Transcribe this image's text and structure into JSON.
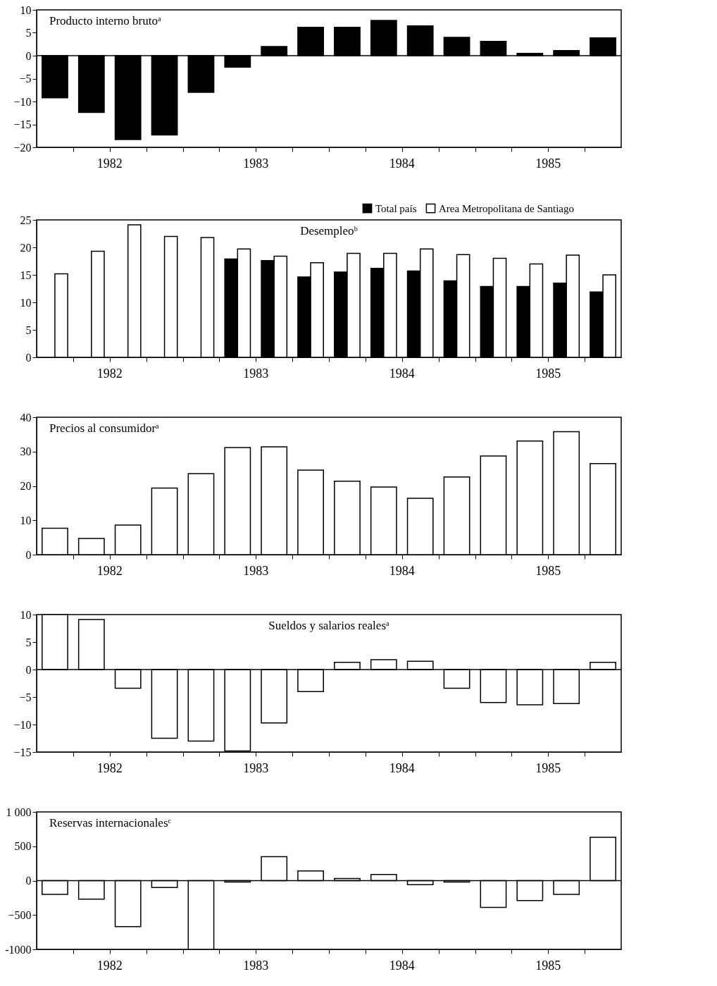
{
  "chart_data": [
    {
      "type": "bar",
      "title": "Producto interno brutoᵃ",
      "categories": [
        null,
        null,
        null,
        null,
        null,
        null,
        null,
        null,
        null,
        null,
        null,
        null,
        null,
        null,
        null,
        null
      ],
      "values": [
        -9.2,
        -12.4,
        -18.3,
        -17.3,
        -8.0,
        -2.5,
        2.0,
        6.2,
        6.2,
        7.7,
        6.5,
        4.0,
        3.1,
        0.5,
        1.1,
        3.9
      ],
      "color": "#000000",
      "ylim": [
        -20,
        10
      ],
      "yticks": [
        -20,
        -15,
        -10,
        -5,
        0,
        5,
        10
      ],
      "ref_lines": [
        {
          "axis": "y",
          "value": 0
        }
      ],
      "tick_labels": "y",
      "grid": false,
      "legend": false,
      "annotations": [
        "1982",
        "1983",
        "1984",
        "1985"
      ]
    },
    {
      "type": "bar",
      "title": "Desempleoᵇ",
      "categories": [
        null,
        null,
        null,
        null,
        null,
        null,
        null,
        null,
        null,
        null,
        null,
        null,
        null,
        null,
        null,
        null
      ],
      "series": [
        {
          "name": "Total país",
          "color": "#000000",
          "values": [
            null,
            null,
            null,
            null,
            null,
            17.9,
            17.6,
            14.6,
            15.5,
            16.2,
            15.7,
            13.9,
            12.9,
            12.9,
            13.5,
            11.9
          ]
        },
        {
          "name": "Area Metropolitana de Santiago",
          "color": "#ffffff",
          "values": [
            15.2,
            19.3,
            24.1,
            22.0,
            21.8,
            19.7,
            18.4,
            17.2,
            18.9,
            18.9,
            19.7,
            18.7,
            18.0,
            17.0,
            18.6,
            15.0
          ]
        }
      ],
      "ylim": [
        0,
        25
      ],
      "yticks": [
        0,
        5,
        10,
        15,
        20,
        25
      ],
      "tick_labels": "y",
      "grid": false,
      "legend": "top right",
      "annotations": [
        "1982",
        "1983",
        "1984",
        "1985"
      ]
    },
    {
      "type": "bar",
      "title": "Precios al consumidorᵃ",
      "categories": [
        null,
        null,
        null,
        null,
        null,
        null,
        null,
        null,
        null,
        null,
        null,
        null,
        null,
        null,
        null,
        null
      ],
      "values": [
        7.7,
        4.7,
        8.6,
        19.4,
        23.6,
        31.2,
        31.4,
        24.6,
        21.4,
        19.7,
        16.4,
        22.6,
        28.7,
        33.1,
        35.8,
        26.5
      ],
      "color": "#ffffff",
      "ylim": [
        0,
        40
      ],
      "yticks": [
        0,
        10,
        20,
        30,
        40
      ],
      "tick_labels": "y",
      "grid": false,
      "legend": false,
      "annotations": [
        "1982",
        "1983",
        "1984",
        "1985"
      ]
    },
    {
      "type": "bar",
      "title": "Sueldos y salarios realesᵃ",
      "categories": [
        null,
        null,
        null,
        null,
        null,
        null,
        null,
        null,
        null,
        null,
        null,
        null,
        null,
        null,
        null,
        null
      ],
      "values": [
        10.0,
        9.1,
        -3.4,
        -12.5,
        -13.0,
        -14.8,
        -9.7,
        -4.0,
        1.3,
        1.8,
        1.5,
        -3.4,
        -6.0,
        -6.4,
        -6.2,
        1.3
      ],
      "color": "#ffffff",
      "ylim": [
        -15,
        10
      ],
      "yticks": [
        -15,
        -10,
        -5,
        0,
        5,
        10
      ],
      "ref_lines": [
        {
          "axis": "y",
          "value": 0
        }
      ],
      "tick_labels": "y",
      "grid": false,
      "legend": false,
      "annotations": [
        "1982",
        "1983",
        "1984",
        "1985"
      ]
    },
    {
      "type": "bar",
      "title": "Reservas internacionalesᶜ",
      "categories": [
        null,
        null,
        null,
        null,
        null,
        null,
        null,
        null,
        null,
        null,
        null,
        null,
        null,
        null,
        null,
        null
      ],
      "values": [
        -200,
        -270,
        -670,
        -100,
        -1000,
        -20,
        350,
        140,
        30,
        90,
        -60,
        -20,
        -390,
        -290,
        -200,
        630
      ],
      "color": "#ffffff",
      "ylim": [
        -1000,
        1000
      ],
      "yticks": [
        {
          "value": -1000,
          "label": "-1000"
        },
        -500,
        0,
        500,
        {
          "value": 1000,
          "label": "1 000"
        }
      ],
      "ref_lines": [
        {
          "axis": "y",
          "value": 0
        }
      ],
      "tick_labels": "y",
      "grid": false,
      "legend": false,
      "annotations": [
        "1982",
        "1983",
        "1984",
        "1985"
      ]
    }
  ]
}
